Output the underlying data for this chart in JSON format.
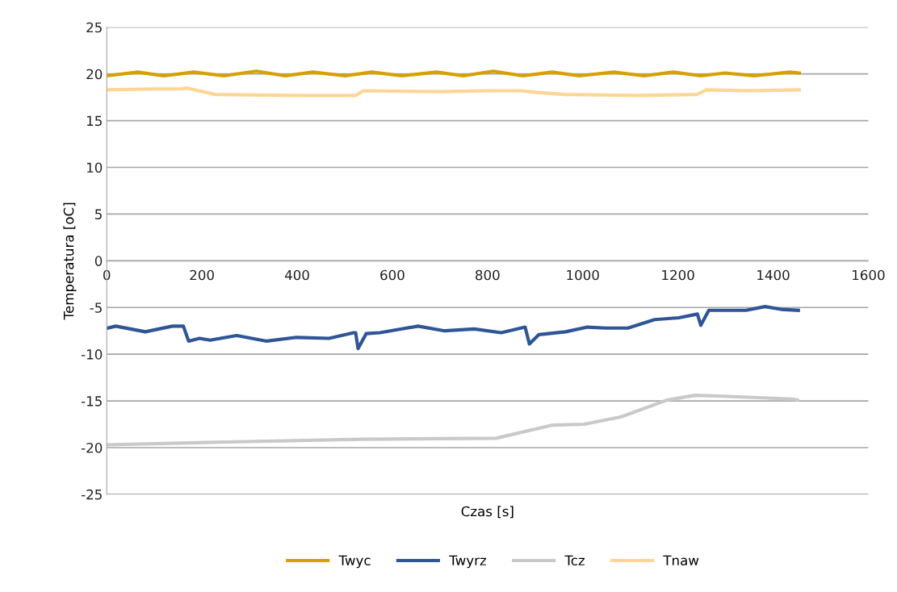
{
  "chart_data": {
    "type": "line",
    "xlabel": "Czas [s]",
    "ylabel": "Temperatura [oC]",
    "xlim": [
      0,
      1600
    ],
    "xticks": [
      0,
      200,
      400,
      600,
      800,
      1000,
      1200,
      1400,
      1600
    ],
    "ylim": [
      -25,
      25
    ],
    "yticks": [
      -25,
      -20,
      -15,
      -10,
      -5,
      0,
      5,
      10,
      15,
      20,
      25
    ],
    "grid": "y",
    "legend": "bottom",
    "marker": "none",
    "line_style": "solid",
    "series": [
      {
        "name": "Twyc",
        "color": "#d6a000",
        "x": [
          0,
          65,
          120,
          183,
          246,
          314,
          375,
          433,
          501,
          557,
          620,
          693,
          749,
          812,
          874,
          936,
          993,
          1066,
          1129,
          1190,
          1248,
          1299,
          1360,
          1435,
          1455
        ],
        "values": [
          19.8,
          20.2,
          19.8,
          20.2,
          19.8,
          20.3,
          19.8,
          20.2,
          19.8,
          20.2,
          19.8,
          20.2,
          19.8,
          20.3,
          19.8,
          20.2,
          19.8,
          20.2,
          19.8,
          20.2,
          19.8,
          20.1,
          19.8,
          20.2,
          20.1
        ]
      },
      {
        "name": "Twyrz",
        "color": "#2f5597",
        "x": [
          2,
          19,
          81,
          138,
          161,
          172,
          195,
          217,
          273,
          336,
          399,
          467,
          519,
          523,
          528,
          545,
          574,
          654,
          710,
          772,
          829,
          879,
          888,
          908,
          964,
          1010,
          1049,
          1095,
          1151,
          1202,
          1241,
          1248,
          1265,
          1343,
          1383,
          1417,
          1453
        ],
        "values": [
          -7.2,
          -7.0,
          -7.6,
          -7.0,
          -7.0,
          -8.6,
          -8.3,
          -8.5,
          -8.0,
          -8.6,
          -8.2,
          -8.3,
          -7.7,
          -7.7,
          -9.4,
          -7.8,
          -7.7,
          -7.0,
          -7.5,
          -7.3,
          -7.7,
          -7.1,
          -8.9,
          -7.9,
          -7.6,
          -7.1,
          -7.2,
          -7.2,
          -6.3,
          -6.1,
          -5.7,
          -6.9,
          -5.3,
          -5.3,
          -4.9,
          -5.2,
          -5.3
        ]
      },
      {
        "name": "Tcz",
        "color": "#c9c9c9",
        "x": [
          0,
          253,
          535,
          818,
          935,
          1003,
          1081,
          1178,
          1236,
          1295,
          1441,
          1451
        ],
        "values": [
          -19.7,
          -19.4,
          -19.1,
          -19.0,
          -17.6,
          -17.5,
          -16.7,
          -14.9,
          -14.4,
          -14.5,
          -14.8,
          -14.9
        ]
      },
      {
        "name": "Tnaw",
        "color": "#ffd596",
        "x": [
          0,
          100,
          160,
          166,
          229,
          400,
          523,
          540,
          700,
          800,
          870,
          908,
          964,
          1117,
          1240,
          1260,
          1350,
          1455
        ],
        "values": [
          18.3,
          18.4,
          18.4,
          18.5,
          17.8,
          17.7,
          17.7,
          18.2,
          18.1,
          18.2,
          18.2,
          18.0,
          17.8,
          17.7,
          17.8,
          18.3,
          18.2,
          18.3
        ]
      }
    ]
  }
}
